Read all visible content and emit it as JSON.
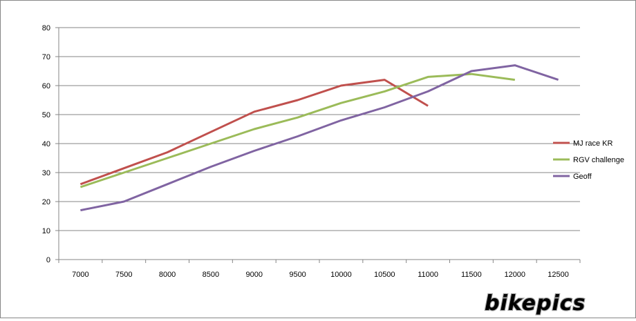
{
  "chart_data": {
    "type": "line",
    "categories": [
      "7000",
      "7500",
      "8000",
      "8500",
      "9000",
      "9500",
      "10000",
      "10500",
      "11000",
      "11500",
      "12000",
      "12500"
    ],
    "ylim": [
      0,
      80
    ],
    "yticks": [
      0,
      10,
      20,
      30,
      40,
      50,
      60,
      70,
      80
    ],
    "grid": true,
    "legend_position": "right",
    "series": [
      {
        "name": "MJ race KR",
        "color": "#c0504d",
        "values": [
          26,
          31.5,
          37,
          44,
          51,
          55,
          60,
          62,
          53,
          null,
          null,
          null
        ]
      },
      {
        "name": "RGV challenge",
        "color": "#9bbb59",
        "values": [
          25,
          30,
          35,
          40,
          45,
          49,
          54,
          58,
          63,
          64,
          62,
          null
        ]
      },
      {
        "name": "Geoff",
        "color": "#8064a2",
        "values": [
          17,
          20,
          26,
          32,
          37.5,
          42.5,
          48,
          52.5,
          58,
          65,
          67,
          62
        ]
      }
    ]
  },
  "watermark": {
    "text": "bikepics"
  }
}
